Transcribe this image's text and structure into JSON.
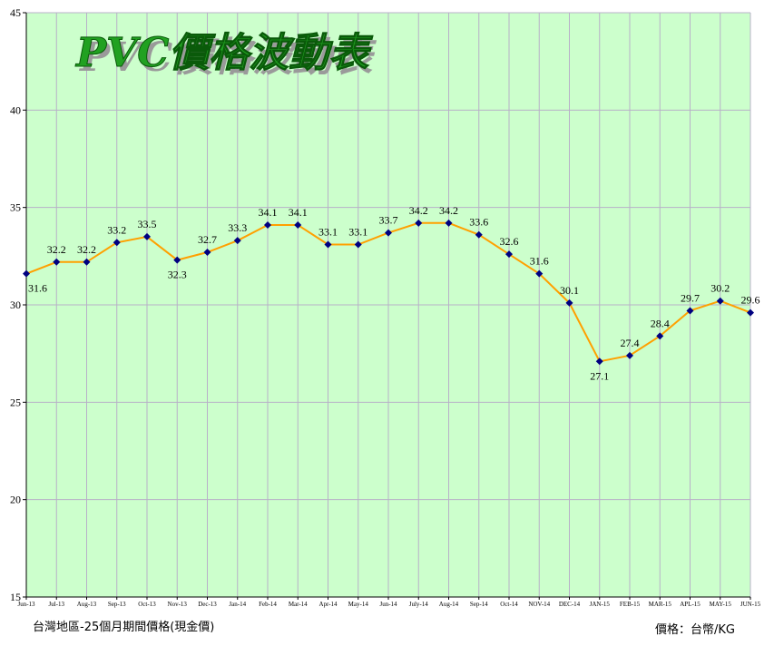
{
  "chart_data": {
    "type": "line",
    "title": "PVC價格波動表",
    "categories": [
      "Jun-13",
      "Jul-13",
      "Aug-13",
      "Sep-13",
      "Oct-13",
      "Nov-13",
      "Dec-13",
      "Jan-14",
      "Feb-14",
      "Mar-14",
      "Apr-14",
      "May-14",
      "Jun-14",
      "July-14",
      "Aug-14",
      "Sep-14",
      "Oct-14",
      "NOV-14",
      "DEC-14",
      "JAN-15",
      "FEB-15",
      "MAR-15",
      "APL-15",
      "MAY-15",
      "JUN-15"
    ],
    "series": [
      {
        "values": [
          31.6,
          32.2,
          32.2,
          33.2,
          33.5,
          32.3,
          32.7,
          33.3,
          34.1,
          34.1,
          33.1,
          33.1,
          33.7,
          34.2,
          34.2,
          33.6,
          32.6,
          31.6,
          30.1,
          27.1,
          27.4,
          28.4,
          29.7,
          30.2,
          29.6
        ],
        "labels": [
          "31.6",
          "32.2",
          "32.2",
          "33.2",
          "33.5",
          "32.3",
          "32.7",
          "33.3",
          "34.1",
          "34.1",
          "33.1",
          "33.1",
          "33.7",
          "34.2",
          "34.2",
          "33.6",
          "32.6",
          "31.6",
          "30.1",
          "27.1",
          "27.4",
          "28.4",
          "29.7",
          "30.2",
          "29.6"
        ]
      }
    ],
    "ylim": [
      15,
      45
    ],
    "yticks": [
      "15",
      "20",
      "25",
      "30",
      "35",
      "40",
      "45"
    ],
    "grid": true,
    "colors": {
      "plot_background": "#ccffcc",
      "grid": "#b8b0c8",
      "line": "#ffa000",
      "marker": "#000080",
      "title_fill": "#21a121"
    }
  },
  "footnotes": {
    "left": "台灣地區-25個月期間價格(現金價)",
    "right": "價格：台幣/KG"
  }
}
